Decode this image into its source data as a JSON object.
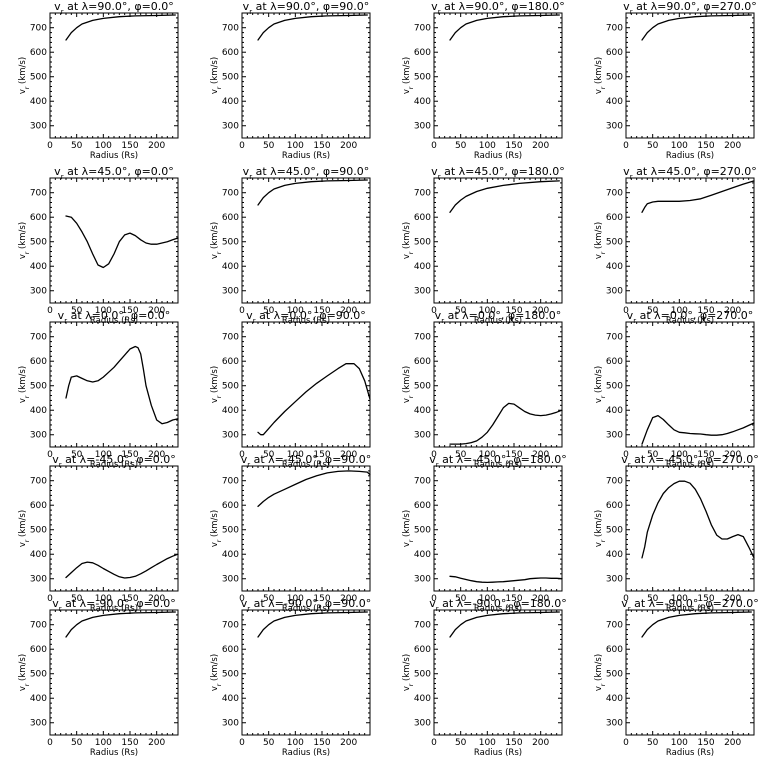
{
  "chart_data": {
    "type": "line",
    "layout": "grid 5 rows x 4 columns",
    "shared": {
      "xlabel": "Radius (Rs)",
      "ylabel": "v_r (km/s)",
      "xlim": [
        0,
        240
      ],
      "ylim": [
        250,
        760
      ],
      "xticks": [
        0,
        50,
        100,
        150,
        200
      ],
      "yticks": [
        300,
        400,
        500,
        600,
        700
      ],
      "grid": false
    },
    "panels": [
      {
        "title": "vr at λ=90.0°, φ=0.0°",
        "lat": "90.0",
        "phi": "0.0",
        "x": [
          30,
          40,
          50,
          60,
          80,
          100,
          130,
          160,
          200,
          235
        ],
        "y": [
          650,
          680,
          700,
          715,
          730,
          738,
          745,
          748,
          750,
          752
        ]
      },
      {
        "title": "vr at λ=90.0°, φ=90.0°",
        "lat": "90.0",
        "phi": "90.0",
        "x": [
          30,
          40,
          50,
          60,
          80,
          100,
          130,
          160,
          200,
          235
        ],
        "y": [
          650,
          680,
          700,
          715,
          730,
          738,
          745,
          748,
          750,
          752
        ]
      },
      {
        "title": "vr at λ=90.0°, φ=180.0°",
        "lat": "90.0",
        "phi": "180.0",
        "x": [
          30,
          40,
          50,
          60,
          80,
          100,
          130,
          160,
          200,
          235
        ],
        "y": [
          650,
          680,
          700,
          715,
          730,
          738,
          745,
          748,
          750,
          752
        ]
      },
      {
        "title": "vr at λ=90.0°, φ=270.0°",
        "lat": "90.0",
        "phi": "270.0",
        "x": [
          30,
          40,
          50,
          60,
          80,
          100,
          130,
          160,
          200,
          235
        ],
        "y": [
          650,
          680,
          700,
          715,
          730,
          738,
          745,
          748,
          750,
          752
        ]
      },
      {
        "title": "vr at λ=45.0°, φ=0.0°",
        "lat": "45.0",
        "phi": "0.0",
        "x": [
          30,
          40,
          50,
          60,
          70,
          80,
          90,
          100,
          110,
          120,
          130,
          140,
          150,
          160,
          170,
          180,
          190,
          200,
          210,
          220,
          230,
          240
        ],
        "y": [
          605,
          600,
          575,
          540,
          500,
          450,
          405,
          395,
          410,
          450,
          500,
          528,
          535,
          525,
          508,
          495,
          490,
          490,
          495,
          500,
          508,
          515
        ]
      },
      {
        "title": "vr at λ=45.0°, φ=90.0°",
        "lat": "45.0",
        "phi": "90.0",
        "x": [
          30,
          40,
          50,
          60,
          80,
          100,
          130,
          160,
          200,
          235
        ],
        "y": [
          650,
          680,
          700,
          715,
          730,
          738,
          745,
          748,
          750,
          752
        ]
      },
      {
        "title": "vr at λ=45.0°, φ=180.0°",
        "lat": "45.0",
        "phi": "180.0",
        "x": [
          30,
          40,
          50,
          60,
          80,
          100,
          130,
          160,
          200,
          235
        ],
        "y": [
          620,
          650,
          670,
          685,
          705,
          718,
          730,
          738,
          745,
          748
        ]
      },
      {
        "title": "vr at λ=45.0°, φ=270.0°",
        "lat": "45.0",
        "phi": "270.0",
        "x": [
          30,
          35,
          40,
          50,
          60,
          80,
          100,
          120,
          140,
          160,
          180,
          200,
          220,
          240
        ],
        "y": [
          620,
          640,
          655,
          662,
          665,
          665,
          665,
          668,
          675,
          690,
          705,
          720,
          735,
          748
        ]
      },
      {
        "title": "vr at λ=0.0°, φ=0.0°",
        "lat": "0.0",
        "phi": "0.0",
        "x": [
          30,
          35,
          40,
          50,
          60,
          70,
          80,
          90,
          100,
          110,
          120,
          130,
          140,
          150,
          160,
          165,
          170,
          175,
          180,
          190,
          200,
          210,
          220,
          230,
          240
        ],
        "y": [
          450,
          500,
          535,
          540,
          530,
          520,
          515,
          520,
          535,
          555,
          575,
          600,
          625,
          650,
          660,
          655,
          630,
          570,
          500,
          420,
          360,
          345,
          350,
          360,
          365
        ]
      },
      {
        "title": "vr at λ=0.0°, φ=90.0°",
        "lat": "0.0",
        "phi": "90.0",
        "x": [
          30,
          35,
          40,
          50,
          60,
          80,
          100,
          120,
          140,
          160,
          180,
          195,
          210,
          220,
          230,
          240
        ],
        "y": [
          310,
          300,
          300,
          325,
          350,
          395,
          435,
          475,
          510,
          540,
          570,
          590,
          590,
          570,
          520,
          445
        ]
      },
      {
        "title": "vr at λ=0.0°, φ=180.0°",
        "lat": "0.0",
        "phi": "180.0",
        "x": [
          30,
          40,
          50,
          60,
          70,
          80,
          90,
          100,
          110,
          120,
          130,
          140,
          150,
          160,
          170,
          180,
          190,
          200,
          210,
          220,
          230,
          240
        ],
        "y": [
          262,
          262,
          262,
          264,
          268,
          275,
          290,
          310,
          340,
          375,
          410,
          428,
          425,
          410,
          395,
          385,
          380,
          378,
          380,
          385,
          392,
          400
        ]
      },
      {
        "title": "vr at λ=0.0°, φ=270.0°",
        "lat": "0.0",
        "phi": "270.0",
        "x": [
          30,
          40,
          50,
          60,
          70,
          80,
          90,
          100,
          110,
          120,
          130,
          140,
          150,
          160,
          170,
          180,
          190,
          200,
          210,
          220,
          230,
          240
        ],
        "y": [
          262,
          320,
          370,
          378,
          362,
          340,
          320,
          310,
          308,
          305,
          304,
          303,
          300,
          298,
          298,
          300,
          305,
          312,
          320,
          328,
          338,
          348
        ]
      },
      {
        "title": "vr at λ=-45.0°, φ=0.0°",
        "lat": "-45.0",
        "phi": "0.0",
        "x": [
          30,
          40,
          50,
          60,
          70,
          80,
          90,
          100,
          110,
          120,
          130,
          140,
          150,
          160,
          170,
          180,
          190,
          200,
          210,
          220,
          230,
          240
        ],
        "y": [
          305,
          325,
          345,
          362,
          368,
          365,
          355,
          342,
          330,
          318,
          308,
          303,
          305,
          310,
          320,
          332,
          345,
          358,
          370,
          382,
          392,
          400
        ]
      },
      {
        "title": "vr at λ=-45.0°, φ=90.0°",
        "lat": "-45.0",
        "phi": "90.0",
        "x": [
          30,
          40,
          50,
          60,
          80,
          100,
          120,
          140,
          160,
          180,
          200,
          220,
          235,
          240
        ],
        "y": [
          595,
          615,
          632,
          645,
          665,
          685,
          705,
          720,
          732,
          738,
          740,
          738,
          735,
          725
        ]
      },
      {
        "title": "vr at λ=-45.0°, φ=180.0°",
        "lat": "-45.0",
        "phi": "180.0",
        "x": [
          30,
          40,
          50,
          60,
          70,
          80,
          90,
          100,
          110,
          120,
          130,
          140,
          150,
          160,
          170,
          180,
          190,
          200,
          210,
          220,
          230,
          240
        ],
        "y": [
          310,
          308,
          302,
          297,
          292,
          288,
          286,
          285,
          286,
          287,
          288,
          290,
          292,
          294,
          296,
          300,
          302,
          303,
          303,
          302,
          302,
          300
        ]
      },
      {
        "title": "vr at λ=-45.0°, φ=270.0°",
        "lat": "-45.0",
        "phi": "270.0",
        "x": [
          30,
          35,
          40,
          50,
          60,
          70,
          80,
          90,
          100,
          110,
          120,
          130,
          140,
          150,
          160,
          170,
          180,
          190,
          200,
          210,
          220,
          230,
          240
        ],
        "y": [
          385,
          430,
          490,
          560,
          610,
          648,
          672,
          688,
          698,
          698,
          690,
          665,
          625,
          575,
          520,
          478,
          462,
          462,
          472,
          480,
          472,
          430,
          385
        ]
      },
      {
        "title": "vr at λ=-90.0°, φ=0.0°",
        "lat": "-90.0",
        "phi": "0.0",
        "x": [
          30,
          40,
          50,
          60,
          80,
          100,
          130,
          160,
          200,
          235
        ],
        "y": [
          650,
          680,
          700,
          715,
          730,
          738,
          745,
          748,
          750,
          752
        ]
      },
      {
        "title": "vr at λ=-90.0°, φ=90.0°",
        "lat": "-90.0",
        "phi": "90.0",
        "x": [
          30,
          40,
          50,
          60,
          80,
          100,
          130,
          160,
          200,
          235
        ],
        "y": [
          650,
          680,
          700,
          715,
          730,
          738,
          745,
          748,
          750,
          752
        ]
      },
      {
        "title": "vr at λ=-90.0°, φ=180.0°",
        "lat": "-90.0",
        "phi": "180.0",
        "x": [
          30,
          40,
          50,
          60,
          80,
          100,
          130,
          160,
          200,
          235
        ],
        "y": [
          650,
          680,
          700,
          715,
          730,
          738,
          745,
          748,
          750,
          752
        ]
      },
      {
        "title": "vr at λ=-90.0°, φ=270.0°",
        "lat": "-90.0",
        "phi": "270.0",
        "x": [
          30,
          40,
          50,
          60,
          80,
          100,
          130,
          160,
          200,
          235
        ],
        "y": [
          650,
          680,
          700,
          715,
          730,
          738,
          745,
          748,
          750,
          752
        ]
      }
    ]
  }
}
